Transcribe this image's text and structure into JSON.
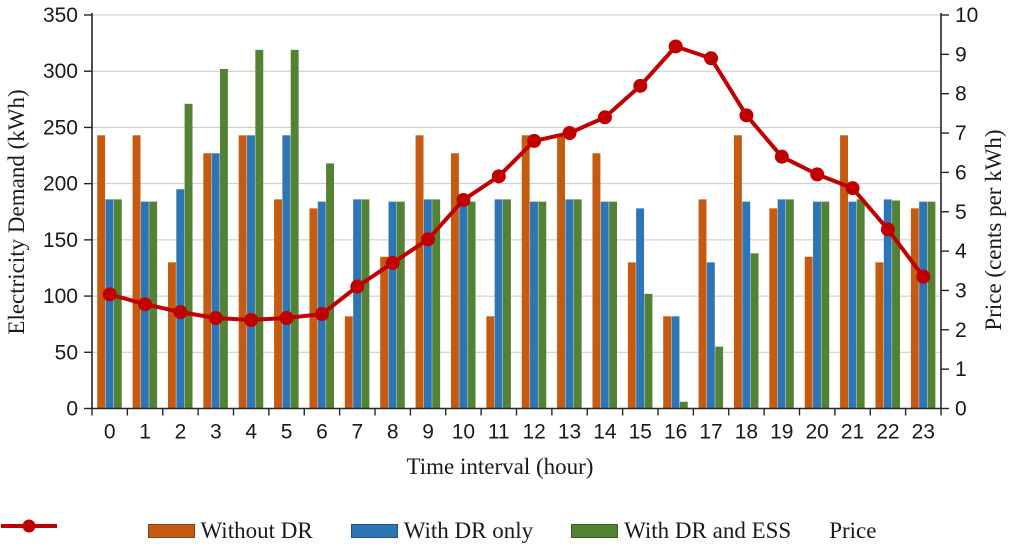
{
  "chart_data": {
    "type": "combo-bar-line",
    "categories": [
      0,
      1,
      2,
      3,
      4,
      5,
      6,
      7,
      8,
      9,
      10,
      11,
      12,
      13,
      14,
      15,
      16,
      17,
      18,
      19,
      20,
      21,
      22,
      23
    ],
    "bar_series": [
      {
        "name": "Without DR",
        "color": "#C55A11",
        "axis": "left",
        "values": [
          243,
          243,
          130,
          227,
          243,
          186,
          178,
          82,
          135,
          243,
          227,
          82,
          243,
          243,
          227,
          130,
          82,
          186,
          243,
          178,
          135,
          243,
          130,
          178
        ]
      },
      {
        "name": "With DR only",
        "color": "#2E75B6",
        "axis": "left",
        "values": [
          186,
          184,
          195,
          227,
          243,
          243,
          184,
          186,
          184,
          186,
          180,
          186,
          184,
          186,
          184,
          178,
          82,
          130,
          184,
          186,
          184,
          184,
          186,
          184
        ]
      },
      {
        "name": "With DR and ESS",
        "color": "#548235",
        "axis": "left",
        "values": [
          186,
          184,
          271,
          302,
          319,
          319,
          218,
          186,
          184,
          186,
          184,
          186,
          184,
          186,
          184,
          102,
          6,
          55,
          138,
          186,
          184,
          186,
          185,
          184
        ]
      }
    ],
    "line_series": {
      "name": "Price",
      "color": "#C00000",
      "axis": "right",
      "values": [
        2.9,
        2.65,
        2.45,
        2.3,
        2.25,
        2.3,
        2.4,
        3.1,
        3.7,
        4.3,
        5.3,
        5.9,
        6.8,
        7.0,
        7.4,
        8.2,
        9.2,
        8.9,
        7.45,
        6.4,
        5.95,
        5.6,
        4.55,
        3.35
      ]
    },
    "left_axis": {
      "title": "Electricity Demand (kWh)",
      "min": 0,
      "max": 350,
      "step": 50
    },
    "right_axis": {
      "title": "Price (cents per kWh)",
      "min": 0,
      "max": 10,
      "step": 1
    },
    "x_axis": {
      "title": "Time interval (hour)"
    },
    "grid": true,
    "legend_position": "bottom",
    "colors": {
      "gridline": "#C8C8C8",
      "axis_line": "#262626",
      "text": "#1a1a1a"
    }
  }
}
